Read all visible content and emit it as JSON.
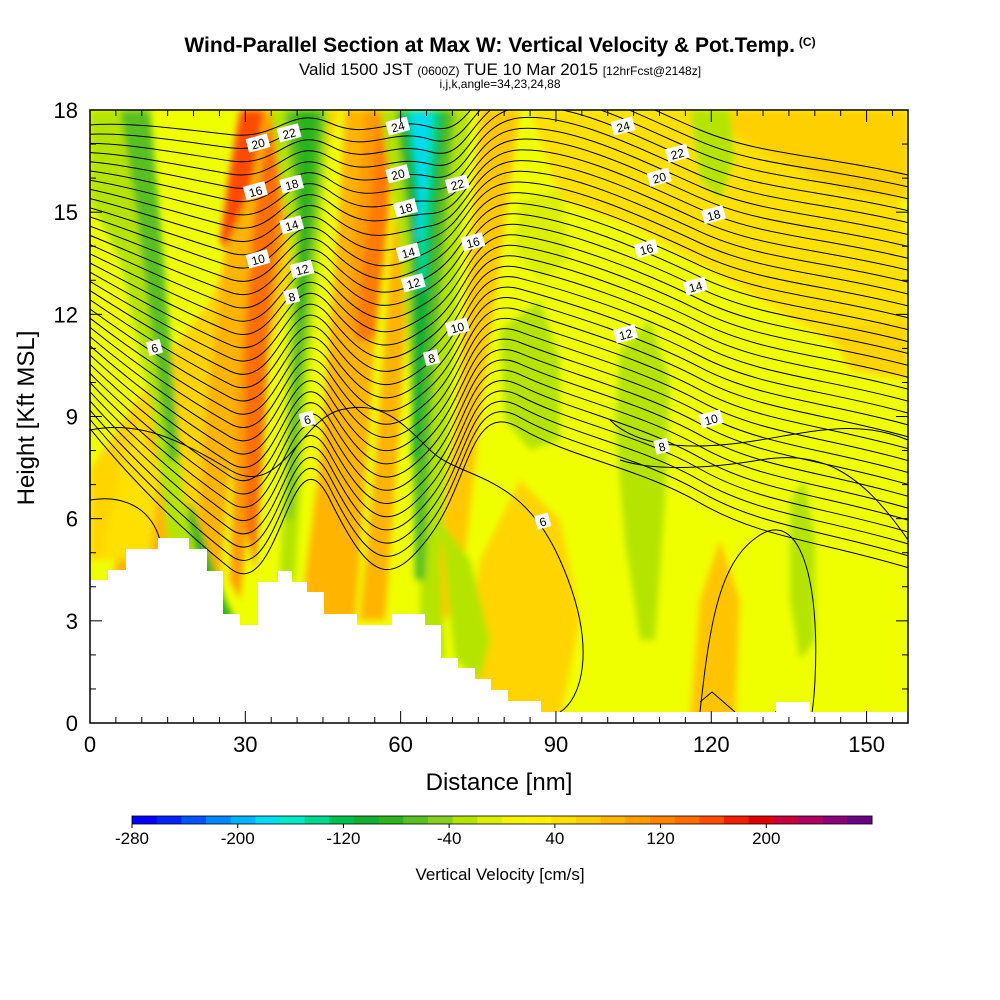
{
  "header": {
    "title": "Wind-Parallel Section at Max W: Vertical Velocity & Pot.Temp.",
    "copyright": "(C)",
    "valid_prefix": "Valid 1500 JST",
    "valid_utc": "(0600Z)",
    "valid_date": "TUE 10 Mar 2015",
    "forecast": "[12hrFcst@2148z]",
    "indices": "i,j,k,angle=34,23,24,88"
  },
  "colors": {
    "background_field": "#f0ff00",
    "terrain": "#ffffff",
    "contour": "#000000"
  },
  "chart_data": {
    "type": "heatmap",
    "xlabel": "Distance [nm]",
    "ylabel": "Height [Kft MSL]",
    "xlim": [
      0,
      158
    ],
    "ylim": [
      0,
      18
    ],
    "x_ticks": [
      0,
      30,
      60,
      90,
      120,
      150
    ],
    "y_ticks": [
      0,
      3,
      6,
      9,
      12,
      15,
      18
    ],
    "colorbar": {
      "label": "Vertical Velocity [cm/s]",
      "range": [
        -280,
        280
      ],
      "tick_labels": [
        "-280",
        "-200",
        "-120",
        "-40",
        "40",
        "120",
        "200"
      ],
      "tick_values": [
        -280,
        -200,
        -120,
        -40,
        40,
        120,
        200
      ],
      "colors": [
        "#0000ff",
        "#0022ff",
        "#0055ff",
        "#0088ff",
        "#00b4ff",
        "#00dcf0",
        "#00eac8",
        "#00d890",
        "#00c050",
        "#10b030",
        "#2cb41c",
        "#58c020",
        "#84d020",
        "#b4e400",
        "#daf000",
        "#f4f400",
        "#fff000",
        "#ffe000",
        "#ffcc00",
        "#ffb400",
        "#ff9c00",
        "#ff8400",
        "#ff6c00",
        "#ff4c00",
        "#f02000",
        "#e00000",
        "#c8003c",
        "#b00060",
        "#8c0078",
        "#6a0084"
      ]
    },
    "theta_contours": {
      "units": "labels",
      "labels": [
        {
          "text": "24",
          "x": 59.5,
          "y": 17.5
        },
        {
          "text": "22",
          "x": 38.5,
          "y": 17.3
        },
        {
          "text": "20",
          "x": 32.5,
          "y": 17.0
        },
        {
          "text": "16",
          "x": 32.0,
          "y": 15.6
        },
        {
          "text": "18",
          "x": 39.0,
          "y": 15.8
        },
        {
          "text": "14",
          "x": 39.0,
          "y": 14.6
        },
        {
          "text": "10",
          "x": 32.5,
          "y": 13.6
        },
        {
          "text": "12",
          "x": 41.0,
          "y": 13.3
        },
        {
          "text": "8",
          "x": 39.0,
          "y": 12.5
        },
        {
          "text": "20",
          "x": 59.5,
          "y": 16.1
        },
        {
          "text": "18",
          "x": 61.0,
          "y": 15.1
        },
        {
          "text": "14",
          "x": 61.5,
          "y": 13.8
        },
        {
          "text": "12",
          "x": 62.5,
          "y": 12.9
        },
        {
          "text": "22",
          "x": 71.0,
          "y": 15.8
        },
        {
          "text": "16",
          "x": 74.0,
          "y": 14.1
        },
        {
          "text": "10",
          "x": 71.0,
          "y": 11.6
        },
        {
          "text": "8",
          "x": 66.0,
          "y": 10.7
        },
        {
          "text": "6",
          "x": 12.5,
          "y": 11.0
        },
        {
          "text": "6",
          "x": 42.0,
          "y": 8.9
        },
        {
          "text": "6",
          "x": 87.5,
          "y": 5.9
        },
        {
          "text": "24",
          "x": 103.0,
          "y": 17.5
        },
        {
          "text": "22",
          "x": 113.5,
          "y": 16.7
        },
        {
          "text": "20",
          "x": 110.0,
          "y": 16.0
        },
        {
          "text": "18",
          "x": 120.5,
          "y": 14.9
        },
        {
          "text": "16",
          "x": 107.5,
          "y": 13.9
        },
        {
          "text": "14",
          "x": 117.0,
          "y": 12.8
        },
        {
          "text": "12",
          "x": 103.5,
          "y": 11.4
        },
        {
          "text": "10",
          "x": 120.0,
          "y": 8.9
        },
        {
          "text": "8",
          "x": 110.5,
          "y": 8.1
        }
      ]
    }
  }
}
